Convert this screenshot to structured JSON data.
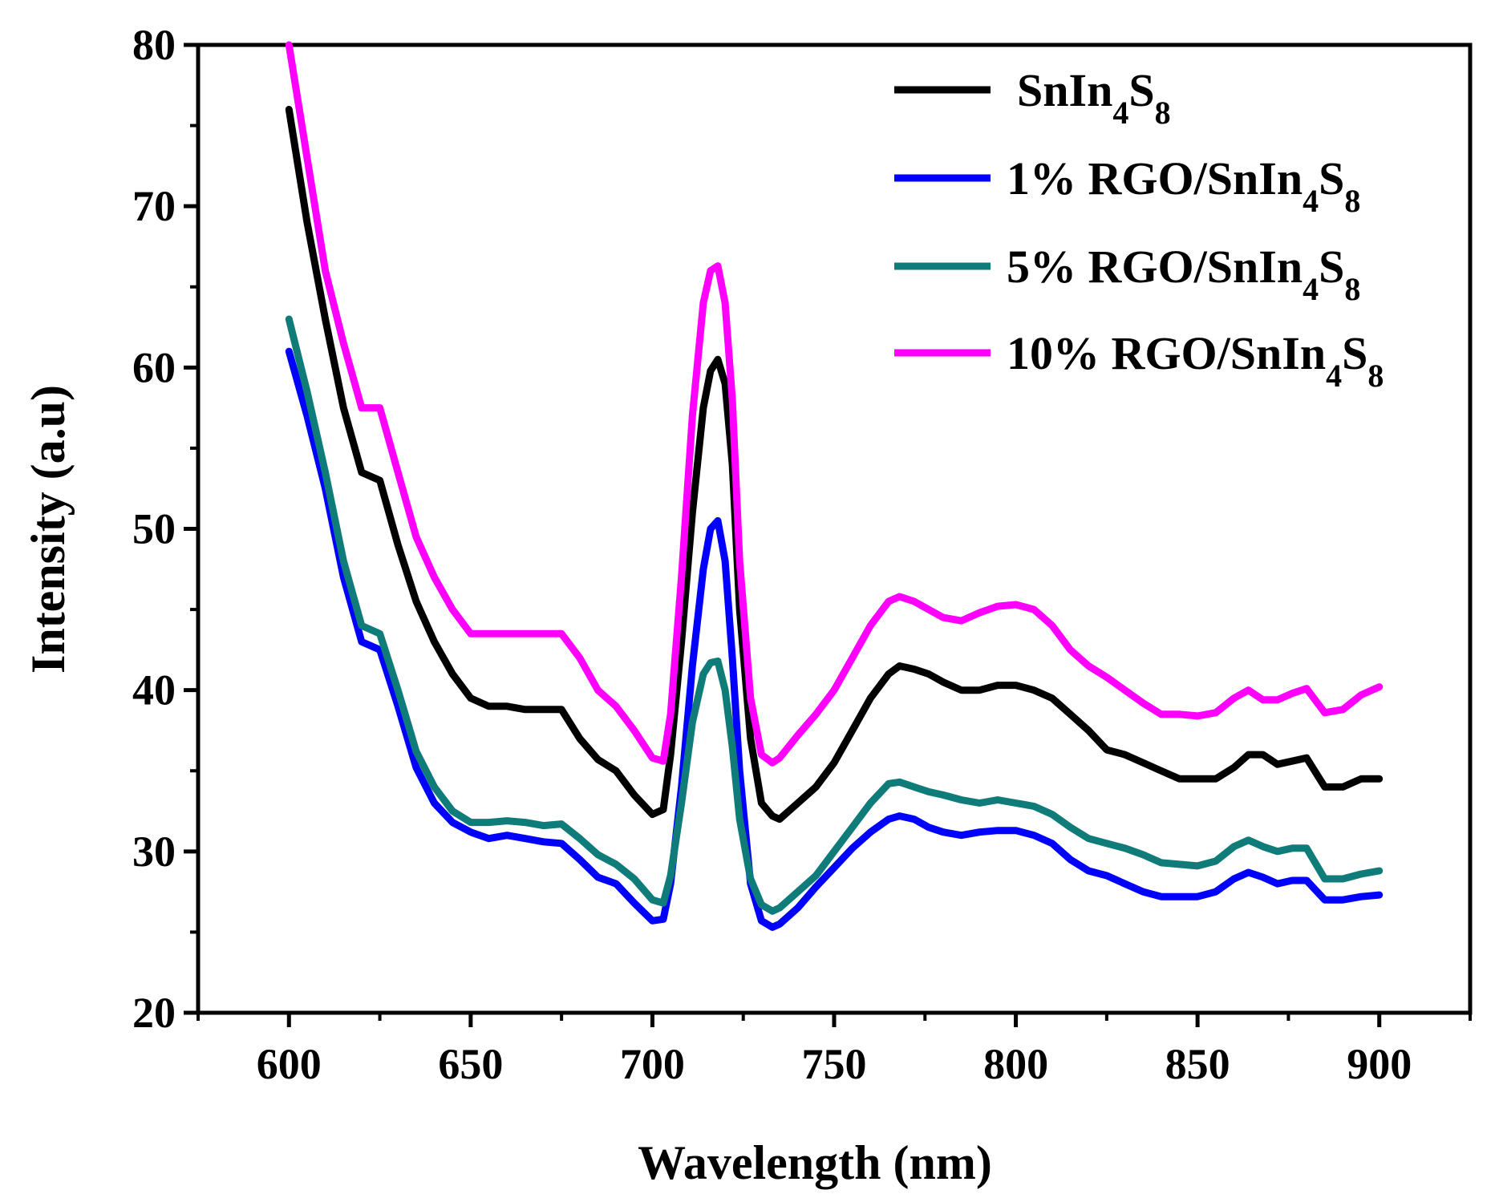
{
  "chart_data": {
    "type": "line",
    "title": "",
    "xlabel": "Wavelength (nm)",
    "ylabel": "Intensity (a.u)",
    "xlim": [
      575,
      925
    ],
    "ylim": [
      20,
      80
    ],
    "xticks": [
      600,
      650,
      700,
      750,
      800,
      850,
      900
    ],
    "yticks": [
      20,
      30,
      40,
      50,
      60,
      70,
      80
    ],
    "grid": false,
    "legend_position": "top-right",
    "x": [
      600,
      605,
      610,
      615,
      620,
      625,
      630,
      635,
      640,
      645,
      650,
      655,
      660,
      665,
      670,
      675,
      680,
      685,
      690,
      695,
      700,
      703,
      705,
      708,
      711,
      714,
      716,
      718,
      720,
      722,
      724,
      727,
      730,
      733,
      735,
      740,
      745,
      750,
      755,
      760,
      765,
      768,
      772,
      776,
      780,
      785,
      790,
      795,
      800,
      805,
      810,
      815,
      820,
      825,
      830,
      835,
      840,
      845,
      850,
      855,
      860,
      864,
      868,
      872,
      876,
      880,
      885,
      890,
      895,
      900
    ],
    "series": [
      {
        "name": "SnIn4S8",
        "name_main": "SnIn",
        "name_sub1": "4",
        "name_mid": "S",
        "name_sub2": "8",
        "color": "#000000",
        "values": [
          76,
          69,
          63,
          57.5,
          53.5,
          53,
          49,
          45.5,
          43,
          41,
          39.5,
          39,
          39,
          38.8,
          38.8,
          38.8,
          37,
          35.7,
          35,
          33.5,
          32.3,
          32.6,
          36,
          43,
          51,
          57.5,
          59.8,
          60.5,
          59,
          54,
          45,
          37,
          33,
          32.2,
          32,
          33,
          34,
          35.5,
          37.5,
          39.5,
          41,
          41.5,
          41.3,
          41,
          40.5,
          40,
          40,
          40.3,
          40.3,
          40,
          39.5,
          38.5,
          37.5,
          36.3,
          36,
          35.5,
          35,
          34.5,
          34.5,
          34.5,
          35.2,
          36,
          36,
          35.4,
          35.6,
          35.8,
          34,
          34,
          34.5,
          34.5
        ]
      },
      {
        "name": "1% RGO/SnIn4S8",
        "name_main": "1% RGO/SnIn",
        "name_sub1": "4",
        "name_mid": "S",
        "name_sub2": "8",
        "color": "#0000ff",
        "values": [
          61,
          57,
          52.5,
          47,
          43,
          42.5,
          39,
          35.2,
          33,
          31.8,
          31.2,
          30.8,
          31,
          30.8,
          30.6,
          30.5,
          29.5,
          28.4,
          28,
          26.8,
          25.7,
          25.8,
          28,
          34,
          41.5,
          47.5,
          50,
          50.5,
          48,
          42,
          35,
          28,
          25.7,
          25.3,
          25.5,
          26.5,
          27.8,
          29,
          30.2,
          31.2,
          32,
          32.2,
          32,
          31.5,
          31.2,
          31,
          31.2,
          31.3,
          31.3,
          31,
          30.5,
          29.5,
          28.8,
          28.5,
          28,
          27.5,
          27.2,
          27.2,
          27.2,
          27.5,
          28.3,
          28.7,
          28.4,
          28,
          28.2,
          28.2,
          27,
          27,
          27.2,
          27.3
        ]
      },
      {
        "name": "5% RGO/SnIn4S8",
        "name_main": "5% RGO/SnIn",
        "name_sub1": "4",
        "name_mid": "S",
        "name_sub2": "8",
        "color": "#0f7c7a",
        "values": [
          63,
          58.5,
          53.5,
          48,
          44,
          43.5,
          40,
          36.2,
          34,
          32.5,
          31.8,
          31.8,
          31.9,
          31.8,
          31.6,
          31.7,
          30.8,
          29.8,
          29.2,
          28.3,
          27,
          26.8,
          28.5,
          33,
          38,
          41,
          41.7,
          41.8,
          40,
          36.5,
          32,
          28.3,
          26.7,
          26.3,
          26.5,
          27.5,
          28.5,
          30,
          31.5,
          33,
          34.2,
          34.3,
          34,
          33.7,
          33.5,
          33.2,
          33,
          33.2,
          33,
          32.8,
          32.3,
          31.5,
          30.8,
          30.5,
          30.2,
          29.8,
          29.3,
          29.2,
          29.1,
          29.4,
          30.3,
          30.7,
          30.3,
          30,
          30.2,
          30.2,
          28.3,
          28.3,
          28.6,
          28.8
        ]
      },
      {
        "name": "10% RGO/SnIn4S8",
        "name_main": "10% RGO/SnIn",
        "name_sub1": "4",
        "name_mid": "S",
        "name_sub2": "8",
        "color": "#ff00ff",
        "values": [
          80,
          73,
          66,
          61.5,
          57.5,
          57.5,
          53.5,
          49.5,
          47,
          45,
          43.5,
          43.5,
          43.5,
          43.5,
          43.5,
          43.5,
          42,
          40,
          39,
          37.5,
          35.8,
          35.6,
          38.5,
          47,
          57,
          64,
          66,
          66.3,
          64,
          58,
          48,
          39.5,
          36,
          35.5,
          35.8,
          37.2,
          38.5,
          40,
          42,
          44,
          45.5,
          45.8,
          45.5,
          45,
          44.5,
          44.3,
          44.8,
          45.2,
          45.3,
          45,
          44,
          42.5,
          41.5,
          40.8,
          40,
          39.2,
          38.5,
          38.5,
          38.4,
          38.6,
          39.5,
          40,
          39.4,
          39.4,
          39.8,
          40.1,
          38.6,
          38.8,
          39.7,
          40.2
        ]
      }
    ]
  }
}
